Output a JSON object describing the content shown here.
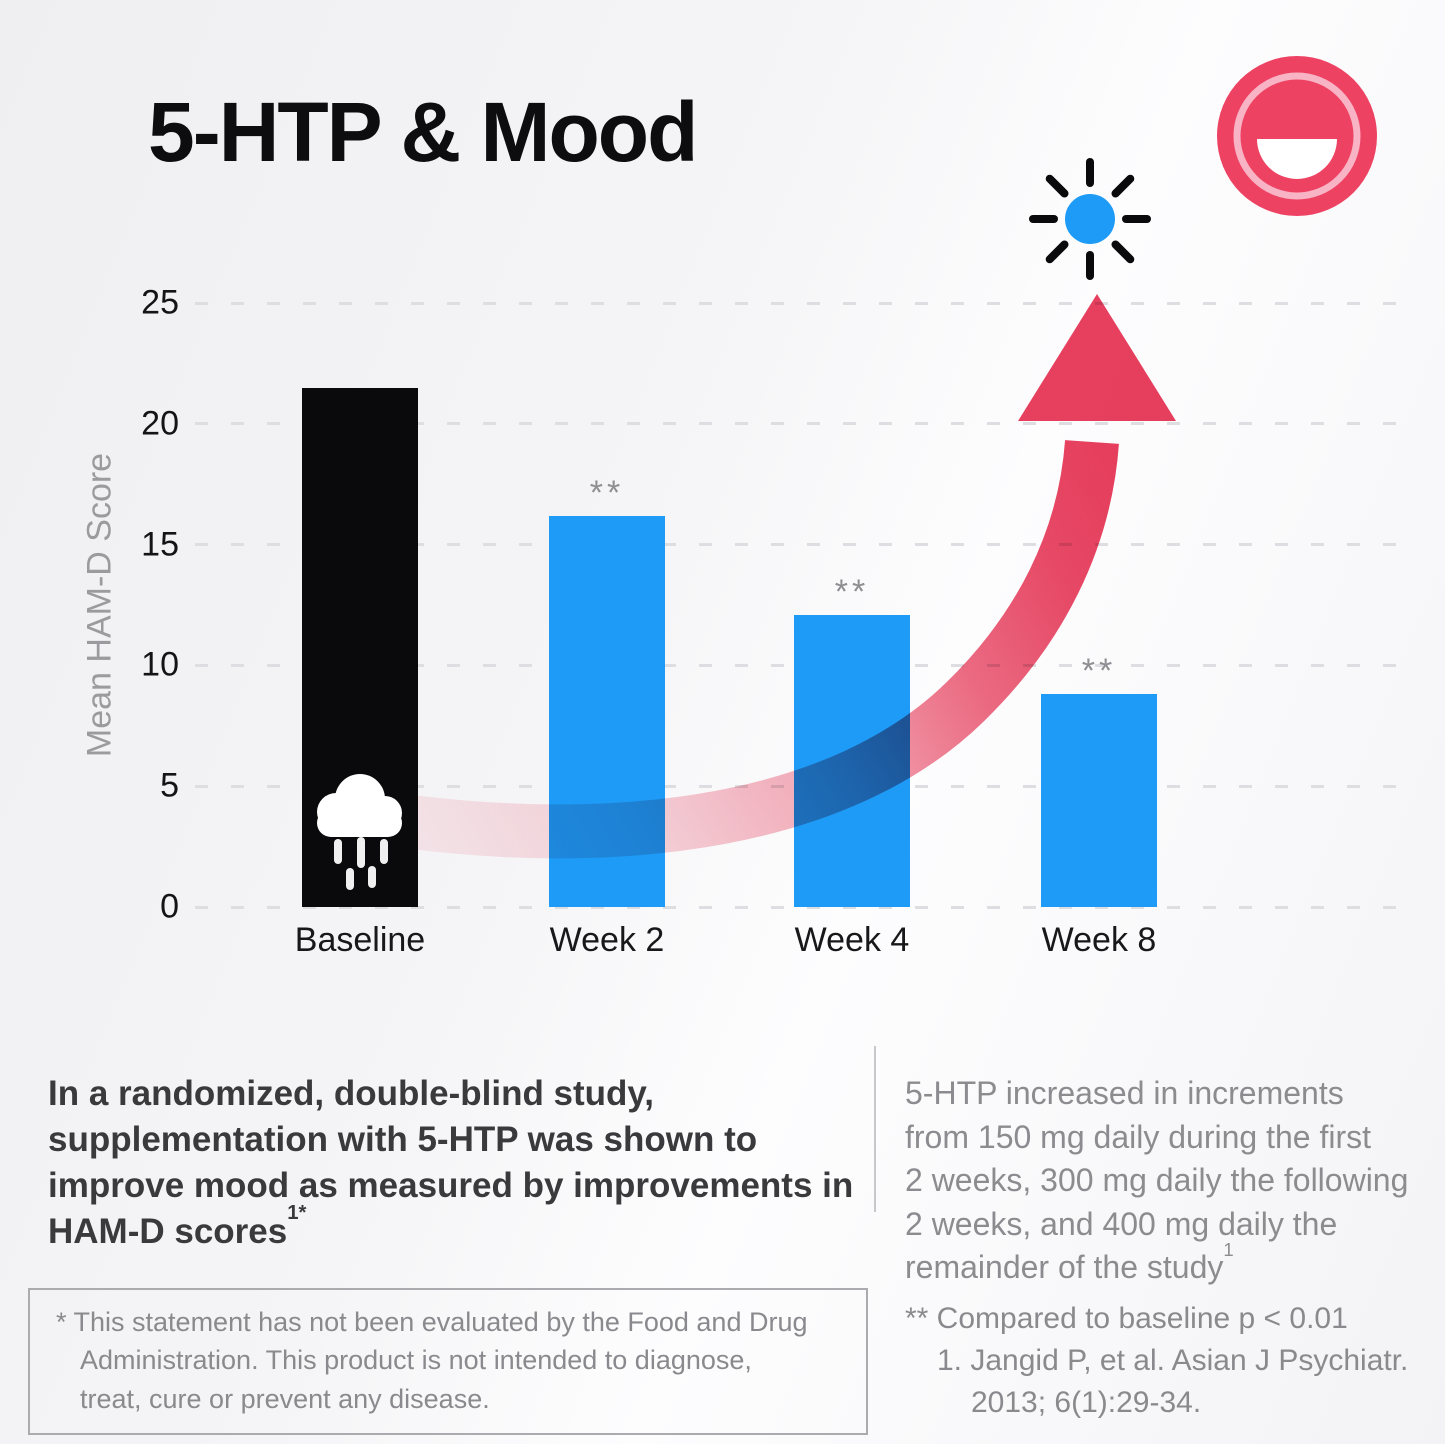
{
  "title": "5-HTP & Mood",
  "colors": {
    "bar_blue": "#1E9BF6",
    "bar_black": "#0A0A0C",
    "arrow_red": "#E8405E",
    "logo_red": "#EE4263",
    "logo_ring_pink": "#F8B3C4",
    "text_dark": "#3A3A3C",
    "text_gray": "#8A8A8E",
    "grid_gray": "#DEDEE2"
  },
  "chart_data": {
    "type": "bar",
    "title": "5-HTP & Mood",
    "categories": [
      "Baseline",
      "Week 2",
      "Week 4",
      "Week 8"
    ],
    "values": [
      21.5,
      16.2,
      12.1,
      8.8
    ],
    "bar_colors": [
      "#0A0A0C",
      "#1E9BF6",
      "#1E9BF6",
      "#1E9BF6"
    ],
    "significance_markers": [
      "",
      "**",
      "**",
      "**"
    ],
    "xlabel": "",
    "ylabel": "Mean HAM-D Score",
    "yticks": [
      0,
      5,
      10,
      15,
      20,
      25
    ],
    "ylim": [
      0,
      25
    ],
    "grid": "horizontal-dashed",
    "legend": "none",
    "annotations": {
      "baseline_bar_icon": "rain-cloud-icon",
      "trend_arrow": "curved red arrow rising from baseline level up to a sun icon above Week 8",
      "arrow_color": "#E8405E",
      "sun_icon_color": "#1E9BF6"
    }
  },
  "summary": {
    "text": "In a randomized, double-blind study, supplementation with 5-HTP was shown to improve mood as measured by improvements in HAM-D scores",
    "superscript": "1*"
  },
  "dosage_note": {
    "lines": [
      "5-HTP increased in increments",
      "from 150 mg daily during the first",
      "2 weeks, 300 mg daily the following",
      "2 weeks, and 400 mg daily the",
      "remainder of the study"
    ],
    "superscript": "1"
  },
  "fda_disclaimer": {
    "lines": [
      "* This statement has not been evaluated by the Food and Drug",
      "Administration. This product is not intended to diagnose,",
      "treat, cure or prevent any disease."
    ]
  },
  "footnotes": {
    "significance": "** Compared to baseline p < 0.01",
    "reference_line1": "1. Jangid P, et al. Asian J Psychiatr.",
    "reference_line2": "2013; 6(1):29-34."
  }
}
